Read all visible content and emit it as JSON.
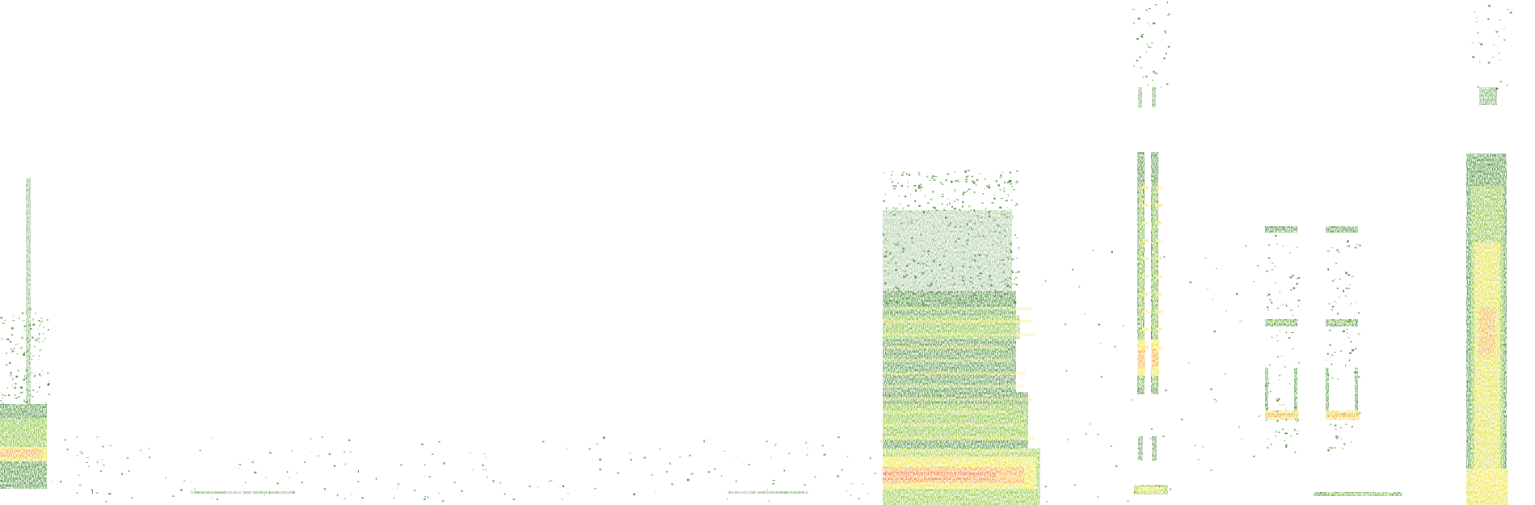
{
  "colors": {
    "background": "#ffffff",
    "low": "#2e7d18",
    "mid": "#7fbf1a",
    "high": "#f4e21c",
    "peak": "#f7931e",
    "max": "#ea4a1f"
  }
}
